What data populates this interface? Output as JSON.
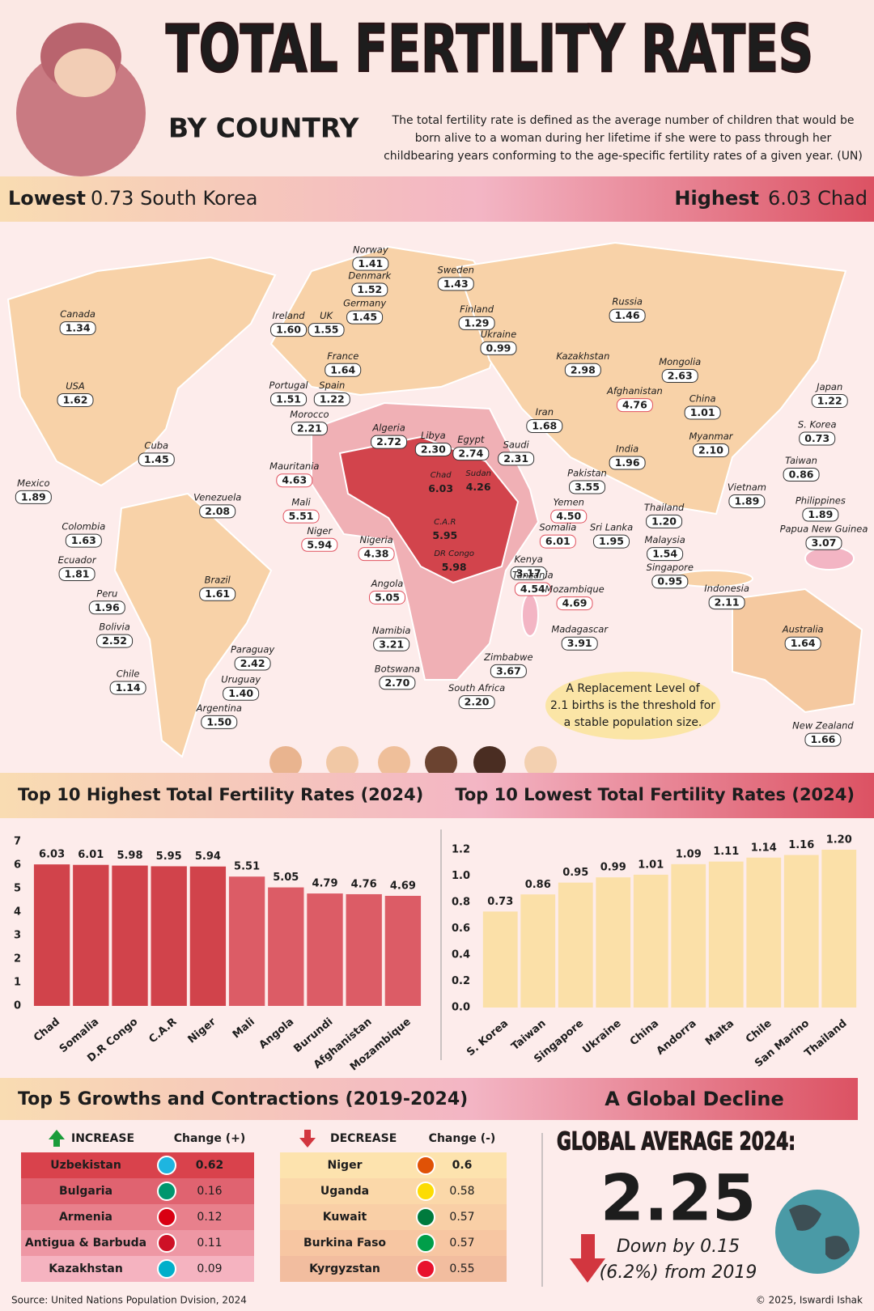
{
  "header": {
    "title": "TOTAL FERTILITY RATES",
    "subtitle": "BY COUNTRY",
    "description": [
      "The total fertility rate is defined as the average number of children that would be",
      "born alive to a woman during her lifetime if she were to pass through her",
      "childbearing years conforming to the age-specific fertility rates of a given year. (UN)"
    ]
  },
  "banner": {
    "lowest_label": "Lowest",
    "lowest_value": "0.73 South Korea",
    "highest_label": "Highest",
    "highest_value": "6.03 Chad"
  },
  "map": {
    "labels": [
      {
        "name": "Canada",
        "value": "1.34"
      },
      {
        "name": "USA",
        "value": "1.62"
      },
      {
        "name": "Mexico",
        "value": "1.89"
      },
      {
        "name": "Cuba",
        "value": "1.45"
      },
      {
        "name": "Venezuela",
        "value": "2.08"
      },
      {
        "name": "Colombia",
        "value": "1.63"
      },
      {
        "name": "Ecuador",
        "value": "1.81"
      },
      {
        "name": "Peru",
        "value": "1.96"
      },
      {
        "name": "Bolivia",
        "value": "2.52"
      },
      {
        "name": "Brazil",
        "value": "1.61"
      },
      {
        "name": "Paraguay",
        "value": "2.42"
      },
      {
        "name": "Uruguay",
        "value": "1.40"
      },
      {
        "name": "Chile",
        "value": "1.14"
      },
      {
        "name": "Argentina",
        "value": "1.50"
      },
      {
        "name": "Ireland",
        "value": "1.60"
      },
      {
        "name": "UK",
        "value": "1.55"
      },
      {
        "name": "Norway",
        "value": "1.41"
      },
      {
        "name": "Denmark",
        "value": "1.52"
      },
      {
        "name": "Sweden",
        "value": "1.43"
      },
      {
        "name": "Germany",
        "value": "1.45"
      },
      {
        "name": "Finland",
        "value": "1.29"
      },
      {
        "name": "France",
        "value": "1.64"
      },
      {
        "name": "Portugal",
        "value": "1.51"
      },
      {
        "name": "Spain",
        "value": "1.22"
      },
      {
        "name": "Ukraine",
        "value": "0.99"
      },
      {
        "name": "Russia",
        "value": "1.46"
      },
      {
        "name": "Kazakhstan",
        "value": "2.98"
      },
      {
        "name": "Mongolia",
        "value": "2.63"
      },
      {
        "name": "Morocco",
        "value": "2.21"
      },
      {
        "name": "Algeria",
        "value": "2.72"
      },
      {
        "name": "Libya",
        "value": "2.30"
      },
      {
        "name": "Egypt",
        "value": "2.74"
      },
      {
        "name": "Saudi",
        "value": "2.31"
      },
      {
        "name": "Iran",
        "value": "1.68"
      },
      {
        "name": "Afghanistan",
        "value": "4.76",
        "color": "#e0505e"
      },
      {
        "name": "Pakistan",
        "value": "3.55"
      },
      {
        "name": "India",
        "value": "1.96"
      },
      {
        "name": "China",
        "value": "1.01"
      },
      {
        "name": "Myanmar",
        "value": "2.10"
      },
      {
        "name": "Japan",
        "value": "1.22"
      },
      {
        "name": "S. Korea",
        "value": "0.73"
      },
      {
        "name": "Taiwan",
        "value": "0.86"
      },
      {
        "name": "Vietnam",
        "value": "1.89"
      },
      {
        "name": "Philippines",
        "value": "1.89"
      },
      {
        "name": "Mauritania",
        "value": "4.63",
        "color": "#e0505e"
      },
      {
        "name": "Chad",
        "value": "6.03",
        "color": "#ffffff"
      },
      {
        "name": "Sudan",
        "value": "4.26",
        "color": "#ffffff"
      },
      {
        "name": "Mali",
        "value": "5.51",
        "color": "#e0505e"
      },
      {
        "name": "Niger",
        "value": "5.94",
        "color": "#e0505e"
      },
      {
        "name": "Nigeria",
        "value": "4.38",
        "color": "#e0505e"
      },
      {
        "name": "C.A.R",
        "value": "5.95",
        "color": "#ffffff"
      },
      {
        "name": "DR Congo",
        "value": "5.98",
        "color": "#ffffff"
      },
      {
        "name": "Yemen",
        "value": "4.50",
        "color": "#e0505e"
      },
      {
        "name": "Somalia",
        "value": "6.01",
        "color": "#e0505e"
      },
      {
        "name": "Kenya",
        "value": "3.17"
      },
      {
        "name": "Tanzania",
        "value": "4.54",
        "color": "#e0505e"
      },
      {
        "name": "Sri Lanka",
        "value": "1.95"
      },
      {
        "name": "Thailand",
        "value": "1.20"
      },
      {
        "name": "Malaysia",
        "value": "1.54"
      },
      {
        "name": "Singapore",
        "value": "0.95"
      },
      {
        "name": "Indonesia",
        "value": "2.11"
      },
      {
        "name": "Papua New Guinea",
        "value": "3.07"
      },
      {
        "name": "Angola",
        "value": "5.05",
        "color": "#e0505e"
      },
      {
        "name": "Mozambique",
        "value": "4.69",
        "color": "#e0505e"
      },
      {
        "name": "Madagascar",
        "value": "3.91"
      },
      {
        "name": "Namibia",
        "value": "3.21"
      },
      {
        "name": "Zimbabwe",
        "value": "3.67"
      },
      {
        "name": "Botswana",
        "value": "2.70"
      },
      {
        "name": "South Africa",
        "value": "2.20"
      },
      {
        "name": "Australia",
        "value": "1.64"
      },
      {
        "name": "New Zealand",
        "value": "1.66"
      }
    ],
    "note": [
      "A Replacement Level of",
      "2.1 births is the threshold for",
      "a stable population size."
    ]
  },
  "charts_heading": {
    "left": "Top 10 Highest Total Fertility Rates (2024)",
    "right": "Top 10 Lowest Total Fertility Rates (2024)"
  },
  "chart_data": [
    {
      "type": "bar",
      "title": "Top 10 Highest Total Fertility Rates (2024)",
      "categories": [
        "Chad",
        "Somalia",
        "D.R Congo",
        "C.A.R",
        "Niger",
        "Mali",
        "Angola",
        "Burundi",
        "Afghanistan",
        "Mozambique"
      ],
      "values": [
        6.03,
        6.01,
        5.98,
        5.95,
        5.94,
        5.51,
        5.05,
        4.79,
        4.76,
        4.69
      ],
      "colors": [
        "#d1434b",
        "#d1434b",
        "#d1434b",
        "#d1434b",
        "#d1434b",
        "#dc5c66",
        "#dc5c66",
        "#dc5c66",
        "#dc5c66",
        "#dc5c66"
      ],
      "ylim": [
        0,
        7
      ],
      "yticks": [
        0,
        1,
        2,
        3,
        4,
        5,
        6,
        7
      ],
      "grid": false
    },
    {
      "type": "bar",
      "title": "Top 10 Lowest Total Fertility Rates (2024)",
      "categories": [
        "S. Korea",
        "Taiwan",
        "Singapore",
        "Ukraine",
        "China",
        "Andorra",
        "Malta",
        "Chile",
        "San Marino",
        "Thailand"
      ],
      "values": [
        0.73,
        0.86,
        0.95,
        0.99,
        1.01,
        1.09,
        1.11,
        1.14,
        1.16,
        1.2
      ],
      "value_labels": [
        "0.73",
        "0.86",
        "0.95",
        "0.99",
        "1.01",
        "1.09",
        "1.11",
        "1.14",
        "1.16",
        "1.20"
      ],
      "color": "#fbe0a8",
      "ylim": [
        0,
        1.2
      ],
      "yticks": [
        {
          "value": 0,
          "label": "0.0"
        },
        0.2,
        0.4,
        0.6,
        0.8,
        {
          "value": 1,
          "label": "1.0"
        },
        1.2
      ],
      "grid": false
    }
  ],
  "changes_heading": {
    "left": "Top 5 Growths and Contractions (2019-2024)",
    "right": "A Global Decline"
  },
  "increase": {
    "header": [
      "INCREASE",
      "Change (+)"
    ],
    "rows": [
      [
        "Uzbekistan",
        "0.62"
      ],
      [
        "Bulgaria",
        "0.16"
      ],
      [
        "Armenia",
        "0.12"
      ],
      [
        "Antigua & Barbuda",
        "0.11"
      ],
      [
        "Kazakhstan",
        "0.09"
      ]
    ]
  },
  "decrease": {
    "header": [
      "DECREASE",
      "Change (-)"
    ],
    "rows": [
      [
        "Niger",
        "0.6"
      ],
      [
        "Uganda",
        "0.58"
      ],
      [
        "Kuwait",
        "0.57"
      ],
      [
        "Burkina Faso",
        "0.57"
      ],
      [
        "Kyrgyzstan",
        "0.55"
      ]
    ]
  },
  "global": {
    "label": "GLOBAL AVERAGE 2024:",
    "value": "2.25",
    "change": [
      "Down by 0.15",
      "(6.2%) from 2019"
    ]
  },
  "footer": {
    "source": "Source: United Nations Population Dvision, 2024",
    "credit": "© 2025, Iswardi Ishak"
  }
}
